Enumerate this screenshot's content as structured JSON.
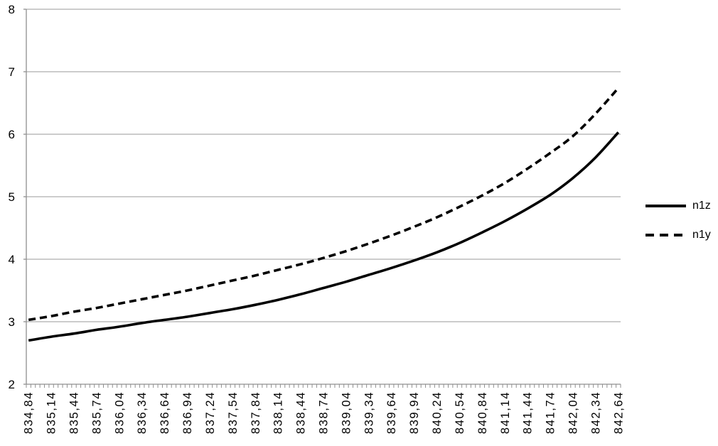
{
  "chart_data": {
    "type": "line",
    "title": "",
    "xlabel": "",
    "ylabel": "",
    "categories": [
      "834,84",
      "835,14",
      "835,44",
      "835,74",
      "836,04",
      "836,34",
      "836,64",
      "836,94",
      "837,24",
      "837,54",
      "837,84",
      "838,14",
      "838,44",
      "838,74",
      "839,04",
      "839,34",
      "839,64",
      "839,94",
      "840,24",
      "840,54",
      "840,84",
      "841,14",
      "841,44",
      "841,74",
      "842,04",
      "842,34",
      "842,64"
    ],
    "series": [
      {
        "name": "n1z",
        "style": "solid",
        "color": "#000000",
        "values": [
          2.7,
          2.76,
          2.81,
          2.87,
          2.92,
          2.98,
          3.03,
          3.08,
          3.14,
          3.2,
          3.27,
          3.35,
          3.44,
          3.54,
          3.64,
          3.75,
          3.86,
          3.98,
          4.11,
          4.26,
          4.43,
          4.61,
          4.81,
          5.03,
          5.3,
          5.63,
          6.03
        ]
      },
      {
        "name": "n1y",
        "style": "dashed",
        "color": "#000000",
        "values": [
          3.03,
          3.09,
          3.16,
          3.22,
          3.29,
          3.36,
          3.43,
          3.5,
          3.58,
          3.66,
          3.74,
          3.83,
          3.92,
          4.02,
          4.13,
          4.25,
          4.38,
          4.52,
          4.67,
          4.84,
          5.02,
          5.22,
          5.45,
          5.7,
          5.97,
          6.33,
          6.74
        ]
      }
    ],
    "ylim": [
      2,
      8
    ],
    "y_ticks": [
      2,
      3,
      4,
      5,
      6,
      7,
      8
    ],
    "minor_ticks_per_label": 5,
    "grid": true,
    "legend_position": "right",
    "colors": {
      "background": "#ffffff",
      "gridline": "#adadad",
      "axis": "#8f8f8f",
      "text": "#000000"
    }
  }
}
